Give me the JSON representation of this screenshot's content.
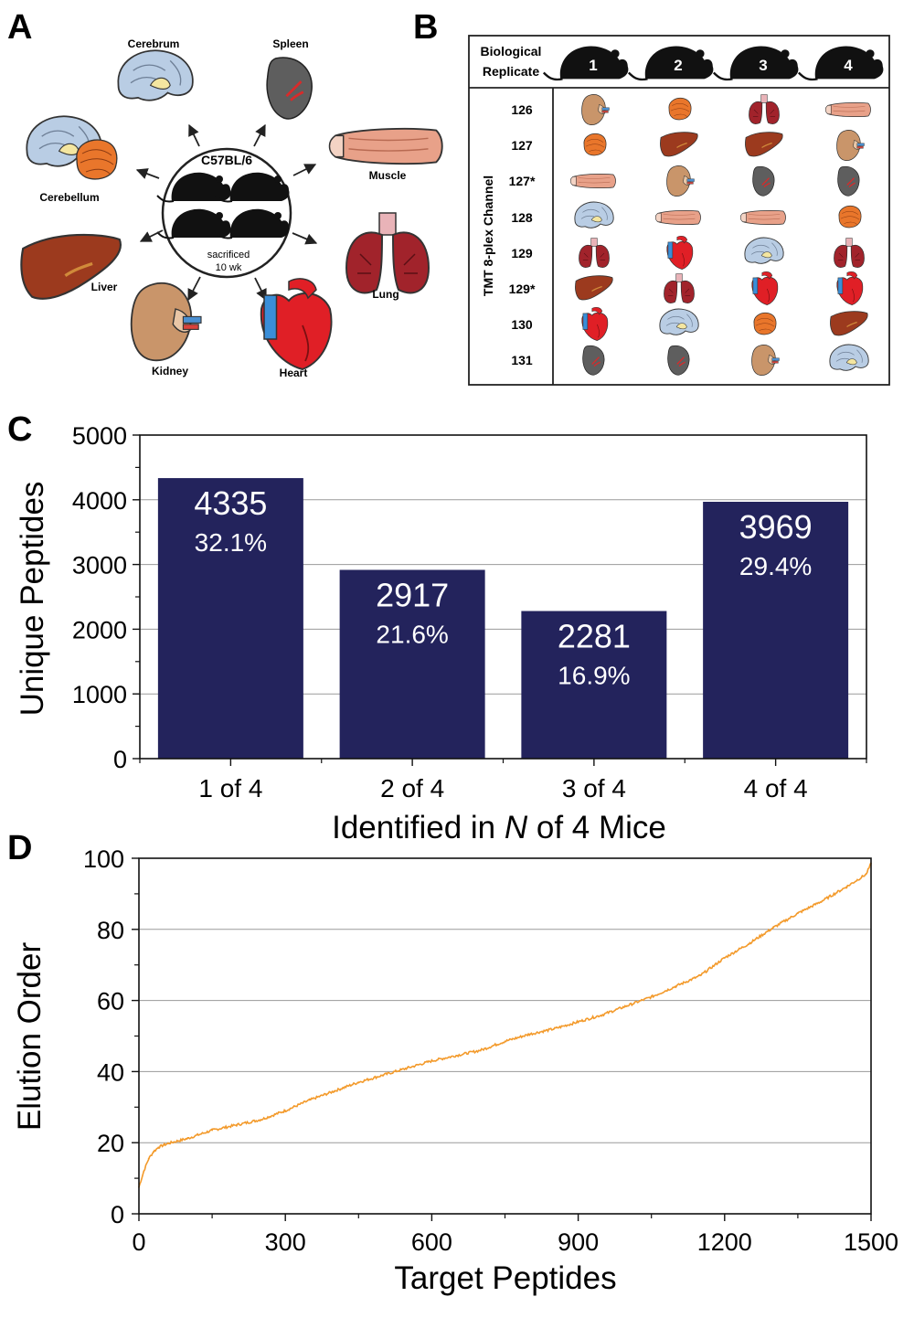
{
  "panels": {
    "a": "A",
    "b": "B",
    "c": "C",
    "d": "D"
  },
  "panel_a": {
    "strain": "C57BL/6",
    "note_line1": "sacrificed",
    "note_line2": "10 wk",
    "organs": {
      "cerebrum": "Cerebrum",
      "spleen": "Spleen",
      "cerebellum": "Cerebellum",
      "muscle": "Muscle",
      "liver": "Liver",
      "lung": "Lung",
      "kidney": "Kidney",
      "heart": "Heart"
    },
    "colors": {
      "brain": "#b9cde4",
      "spleen": "#5e5e5e",
      "muscle": "#e8a189",
      "liver": "#9c3a1e",
      "lung": "#a1232b",
      "kidney": "#c9956a",
      "heart": "#e01f26",
      "cerebellum": "#e9762b"
    }
  },
  "panel_b": {
    "header_line1": "Biological",
    "header_line2": "Replicate",
    "axis_label": "TMT 8-plex Channel",
    "replicates": [
      "1",
      "2",
      "3",
      "4"
    ],
    "channels": [
      "126",
      "127",
      "127*",
      "128",
      "129",
      "129*",
      "130",
      "131"
    ],
    "grid": [
      [
        "kidney",
        "cerebellum",
        "lung",
        "muscle"
      ],
      [
        "cerebellum",
        "liver",
        "liver",
        "kidney"
      ],
      [
        "muscle",
        "kidney",
        "spleen",
        "spleen"
      ],
      [
        "cerebrum",
        "muscle",
        "muscle",
        "cerebellum"
      ],
      [
        "lung",
        "heart",
        "cerebrum",
        "lung"
      ],
      [
        "liver",
        "lung",
        "heart",
        "heart"
      ],
      [
        "heart",
        "cerebrum",
        "cerebellum",
        "liver"
      ],
      [
        "spleen",
        "spleen",
        "kidney",
        "cerebrum"
      ]
    ]
  },
  "chart_data": [
    {
      "type": "bar",
      "panel": "C",
      "categories": [
        "1 of 4",
        "2 of 4",
        "3 of 4",
        "4 of 4"
      ],
      "values": [
        4335,
        2917,
        2281,
        3969
      ],
      "percent_labels": [
        "32.1%",
        "21.6%",
        "16.9%",
        "29.4%"
      ],
      "ylabel": "Unique Peptides",
      "xlabel_prefix": "Identified in ",
      "xlabel_var": "N",
      "xlabel_suffix": " of 4 Mice",
      "ylim": [
        0,
        5000
      ],
      "yticks": [
        0,
        1000,
        2000,
        3000,
        4000,
        5000
      ],
      "grid": true,
      "bar_color": "#23235c"
    },
    {
      "type": "line",
      "panel": "D",
      "xlabel": "Target Peptides",
      "ylabel": "Elution Order",
      "xlim": [
        0,
        1500
      ],
      "ylim": [
        0,
        100
      ],
      "xticks": [
        0,
        300,
        600,
        900,
        1200,
        1500
      ],
      "yticks": [
        0,
        20,
        40,
        60,
        80,
        100
      ],
      "grid": true,
      "line_color": "#f39a2b",
      "x": [
        0,
        10,
        20,
        30,
        40,
        50,
        60,
        80,
        100,
        150,
        200,
        250,
        300,
        350,
        400,
        450,
        500,
        550,
        600,
        650,
        700,
        750,
        800,
        850,
        900,
        950,
        1000,
        1050,
        1100,
        1150,
        1200,
        1250,
        1300,
        1350,
        1400,
        1450,
        1490,
        1500
      ],
      "y": [
        7.5,
        12,
        15.5,
        17.5,
        18.7,
        19.3,
        19.8,
        20.5,
        21.2,
        23.5,
        25,
        26.5,
        29,
        32,
        34.5,
        37,
        39,
        41,
        43,
        44.5,
        46,
        48.5,
        50.5,
        52,
        54,
        56,
        58.5,
        61,
        64,
        67,
        72,
        76,
        80.5,
        84.5,
        88,
        92,
        95.5,
        98.5
      ]
    }
  ]
}
